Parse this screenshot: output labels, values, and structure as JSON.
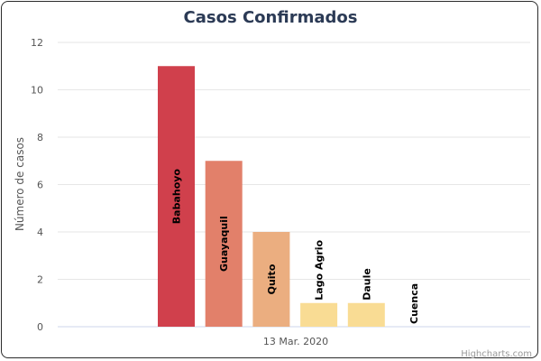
{
  "chart_data": {
    "type": "bar",
    "title": "Casos Confirmados",
    "ylabel": "Número de casos",
    "xlabel": "",
    "x_category": "13 Mar. 2020",
    "ylim": [
      0,
      12
    ],
    "yticks": [
      0,
      2,
      4,
      6,
      8,
      10,
      12
    ],
    "grid": true,
    "series": [
      {
        "name": "Babahoyo",
        "value": 11,
        "color": "#d0404c"
      },
      {
        "name": "Guayaquil",
        "value": 7,
        "color": "#e2806a"
      },
      {
        "name": "Quito",
        "value": 4,
        "color": "#ebae80"
      },
      {
        "name": "Lago Agrio",
        "value": 1,
        "color": "#f9dc94"
      },
      {
        "name": "Daule",
        "value": 1,
        "color": "#f9dc94"
      },
      {
        "name": "Cuenca",
        "value": 0,
        "color": "#f9dc94"
      }
    ]
  },
  "credits": "Highcharts.com"
}
